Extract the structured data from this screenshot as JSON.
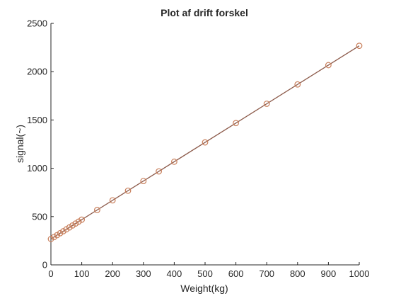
{
  "chart_data": {
    "type": "scatter",
    "title": "Plot af drift forskel",
    "xlabel": "Weight(kg)",
    "ylabel": "signal(~)",
    "xlim": [
      0,
      1000
    ],
    "ylim": [
      0,
      2500
    ],
    "xticks": [
      0,
      100,
      200,
      300,
      400,
      500,
      600,
      700,
      800,
      900,
      1000
    ],
    "yticks": [
      0,
      500,
      1000,
      1500,
      2000,
      2500
    ],
    "grid": false,
    "series": [
      {
        "marker": "circle",
        "line": "fit",
        "color": "#c87e5a",
        "x": [
          0,
          10,
          20,
          30,
          40,
          50,
          60,
          70,
          80,
          90,
          100,
          150,
          200,
          250,
          300,
          350,
          400,
          500,
          600,
          700,
          800,
          900,
          1000
        ],
        "y": [
          268,
          288,
          308,
          328,
          348,
          368,
          388,
          408,
          428,
          448,
          468,
          568,
          668,
          768,
          868,
          968,
          1068,
          1268,
          1468,
          1668,
          1868,
          2068,
          2268
        ]
      }
    ],
    "fit_line": {
      "color": "#8c5a4a",
      "x": [
        0,
        1000
      ],
      "y": [
        268,
        2268
      ]
    }
  }
}
